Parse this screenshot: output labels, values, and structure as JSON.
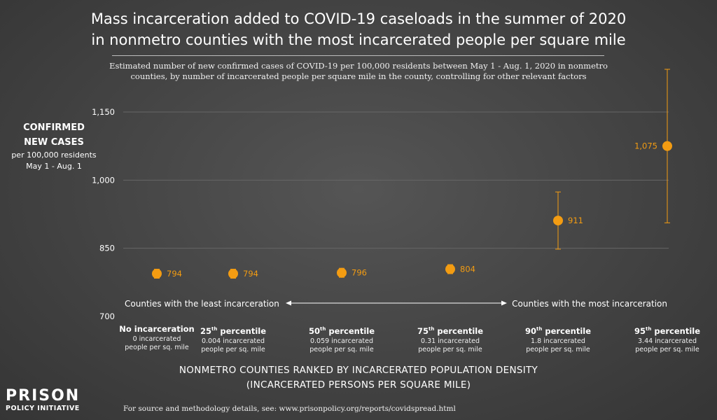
{
  "title": {
    "line1": "Mass incarceration added to COVID-19 caseloads in the summer of 2020",
    "line2": "in nonmetro counties with the most incarcerated people per square mile"
  },
  "subtitle": {
    "line1": "Estimated number of new confirmed cases of COVID-19 per 100,000 residents between May 1 - Aug. 1, 2020 in nonmetro",
    "line2": "counties, by number of incarcerated people per square mile in the county, controlling for other relevant factors"
  },
  "y_axis_label": {
    "line1": "CONFIRMED",
    "line2": "NEW CASES",
    "line3": "per 100,000 residents",
    "line4": "May 1 - Aug. 1"
  },
  "range_labels": {
    "left": "Counties with the least incarceration",
    "right": "Counties with the most incarceration"
  },
  "x_axis_title": {
    "line1": "NONMETRO COUNTIES RANKED BY INCARCERATED POPULATION DENSITY",
    "line2": "(INCARCERATED PERSONS PER SQUARE MILE)"
  },
  "footer": "For source and methodology details, see: www.prisonpolicy.org/reports/covidspread.html",
  "logo": {
    "top": "PRISON",
    "bottom": "POLICY INITIATIVE"
  },
  "colors": {
    "point": "#f39c12",
    "background": "#444444",
    "grid": "#666666",
    "text": "#ffffff"
  },
  "chart_data": {
    "type": "scatter",
    "title": "Mass incarceration added to COVID-19 caseloads in the summer of 2020 in nonmetro counties with the most incarcerated people per square mile",
    "ylabel": "CONFIRMED NEW CASES per 100,000 residents May 1 - Aug. 1",
    "xlabel": "NONMETRO COUNTIES RANKED BY INCARCERATED POPULATION DENSITY (INCARCERATED PERSONS PER SQUARE MILE)",
    "ylim": [
      700,
      1150
    ],
    "yticks": [
      700,
      850,
      1000,
      1150
    ],
    "ytick_labels": [
      "700",
      "850",
      "1,000",
      "1,150"
    ],
    "grid": true,
    "categories": [
      {
        "name": "No incarceration",
        "ord": "",
        "desc1": "0 incarcerated",
        "desc2": "people per sq. mile"
      },
      {
        "name": "25",
        "ord": "th",
        "suffix": " percentile",
        "desc1": "0.004 incarcerated",
        "desc2": "people per sq. mile"
      },
      {
        "name": "50",
        "ord": "th",
        "suffix": " percentile",
        "desc1": "0.059 incarcerated",
        "desc2": "people per sq. mile"
      },
      {
        "name": "75",
        "ord": "th",
        "suffix": " percentile",
        "desc1": "0.31 incarcerated",
        "desc2": "people per sq. mile"
      },
      {
        "name": "90",
        "ord": "th",
        "suffix": " percentile",
        "desc1": "1.8 incarcerated",
        "desc2": "people per sq. mile"
      },
      {
        "name": "95",
        "ord": "th",
        "suffix": " percentile",
        "desc1": "3.44 incarcerated",
        "desc2": "people per sq. mile"
      }
    ],
    "values": [
      794,
      794,
      796,
      804,
      911,
      1075
    ],
    "value_labels": [
      "794",
      "794",
      "796",
      "804",
      "911",
      "1,075"
    ],
    "error_low": [
      784,
      784,
      786,
      794,
      848,
      906
    ],
    "error_high": [
      804,
      804,
      806,
      814,
      974,
      1244
    ]
  }
}
